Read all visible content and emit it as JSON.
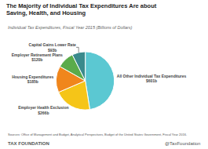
{
  "chart_data": {
    "type": "pie",
    "title": "The Majority of Individual Tax Expenditures Are about\nSaving, Health, and Housing",
    "subtitle": "Individual Tax Expenditures, Fiscal Year 2015 (Billions of Dollars)",
    "categories": [
      "All Other Individual Tax Expenditures",
      "Employer Health Exclusion",
      "Housing Expenditures",
      "Employer Retirement Plans",
      "Capital Gains Lower Rate"
    ],
    "values": [
      601,
      266,
      185,
      120,
      93
    ],
    "value_labels": [
      "$601b",
      "$266b",
      "$185b",
      "$120b",
      "$93b"
    ],
    "colors": [
      "#5bc8d2",
      "#f5c518",
      "#f0861c",
      "#5aab4a",
      "#3a8a8c"
    ],
    "data_labels": true,
    "annotations": [
      "Sources: Office of Management and Budget, Analytical Perspectives, Budget of the United States Government, Fiscal Year 2016.",
      "TAX FOUNDATION",
      "@TaxFoundation"
    ]
  }
}
